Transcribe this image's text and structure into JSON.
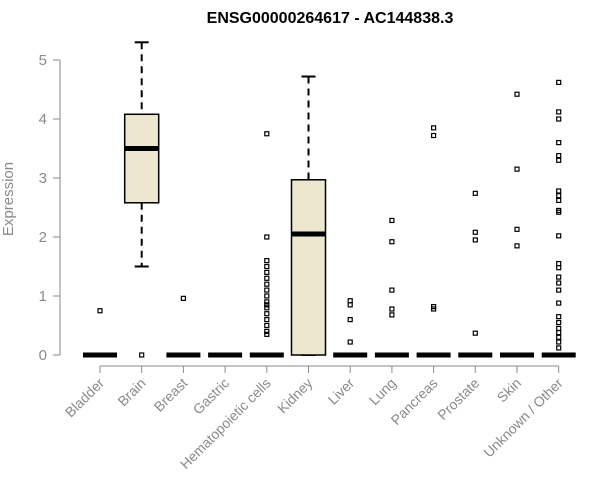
{
  "chart_data": {
    "type": "boxplot",
    "title": "ENSG00000264617 - AC144838.3",
    "ylabel": "Expression",
    "xlabel": "",
    "ylim": [
      0,
      5.3
    ],
    "yticks": [
      0,
      1,
      2,
      3,
      4,
      5
    ],
    "grid": false,
    "legend": "none",
    "colors": {
      "box_fill": "#ede7cf",
      "box_stroke": "#000000",
      "axis": "#8a8a8a",
      "text": "#8a8a8a"
    },
    "categories": [
      "Bladder",
      "Brain",
      "Breast",
      "Gastric",
      "Hematopoietic cells",
      "Kidney",
      "Liver",
      "Lung",
      "Pancreas",
      "Prostate",
      "Skin",
      "Unknown / Other"
    ],
    "boxes": [
      {
        "category": "Bladder",
        "q1": 0,
        "median": 0,
        "q3": 0,
        "whisker_low": 0,
        "whisker_high": 0,
        "outliers": [
          0.75
        ]
      },
      {
        "category": "Brain",
        "q1": 2.58,
        "median": 3.5,
        "q3": 4.08,
        "whisker_low": 1.5,
        "whisker_high": 5.3,
        "outliers": [
          0
        ]
      },
      {
        "category": "Breast",
        "q1": 0,
        "median": 0,
        "q3": 0,
        "whisker_low": 0,
        "whisker_high": 0,
        "outliers": [
          0.96
        ]
      },
      {
        "category": "Gastric",
        "q1": 0,
        "median": 0,
        "q3": 0,
        "whisker_low": 0,
        "whisker_high": 0,
        "outliers": []
      },
      {
        "category": "Hematopoietic cells",
        "q1": 0,
        "median": 0,
        "q3": 0,
        "whisker_low": 0,
        "whisker_high": 0,
        "outliers": [
          3.75,
          2.0,
          1.6,
          1.5,
          1.4,
          1.3,
          1.2,
          1.1,
          1.0,
          0.9,
          0.85,
          0.8,
          0.7,
          0.6,
          0.5,
          0.4,
          0.35
        ]
      },
      {
        "category": "Kidney",
        "q1": 0,
        "median": 2.05,
        "q3": 2.97,
        "whisker_low": 0,
        "whisker_high": 4.72,
        "outliers": []
      },
      {
        "category": "Liver",
        "q1": 0,
        "median": 0,
        "q3": 0,
        "whisker_low": 0,
        "whisker_high": 0,
        "outliers": [
          0.92,
          0.85,
          0.6,
          0.22
        ]
      },
      {
        "category": "Lung",
        "q1": 0,
        "median": 0,
        "q3": 0,
        "whisker_low": 0,
        "whisker_high": 0,
        "outliers": [
          2.28,
          1.92,
          1.1,
          0.78,
          0.68
        ]
      },
      {
        "category": "Pancreas",
        "q1": 0,
        "median": 0,
        "q3": 0,
        "whisker_low": 0,
        "whisker_high": 0,
        "outliers": [
          3.85,
          3.72,
          0.82,
          0.78
        ]
      },
      {
        "category": "Prostate",
        "q1": 0,
        "median": 0,
        "q3": 0,
        "whisker_low": 0,
        "whisker_high": 0,
        "outliers": [
          2.74,
          2.08,
          1.95,
          0.37
        ]
      },
      {
        "category": "Skin",
        "q1": 0,
        "median": 0,
        "q3": 0,
        "whisker_low": 0,
        "whisker_high": 0,
        "outliers": [
          4.42,
          3.15,
          2.13,
          1.85
        ]
      },
      {
        "category": "Unknown / Other",
        "q1": 0,
        "median": 0,
        "q3": 0,
        "whisker_low": 0,
        "whisker_high": 0,
        "outliers": [
          4.62,
          4.12,
          4.0,
          3.6,
          3.38,
          3.3,
          2.78,
          2.7,
          2.62,
          2.45,
          2.42,
          2.02,
          1.55,
          1.48,
          1.32,
          1.22,
          1.1,
          0.88,
          0.65,
          0.55,
          0.45,
          0.38,
          0.3,
          0.22,
          0.12
        ]
      }
    ]
  }
}
